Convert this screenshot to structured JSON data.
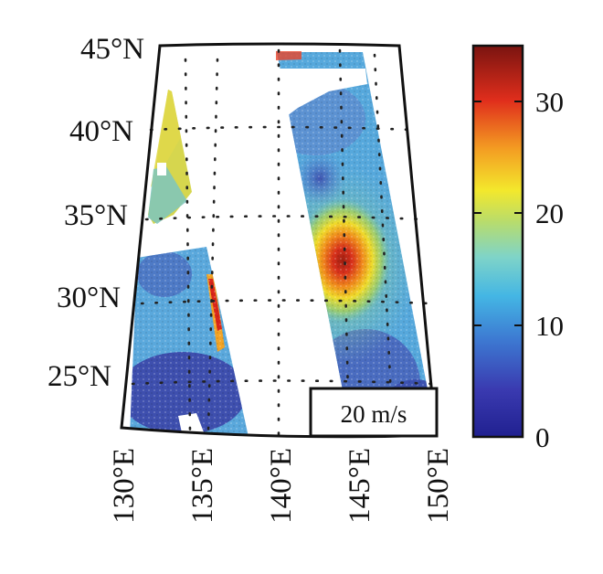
{
  "map": {
    "lat_labels": [
      "45°N",
      "40°N",
      "35°N",
      "30°N",
      "25°N"
    ],
    "lat_values": [
      45,
      40,
      35,
      30,
      25
    ],
    "lon_labels": [
      "130°E",
      "135°E",
      "140°E",
      "145°E",
      "150°E"
    ],
    "lon_values": [
      130,
      135,
      140,
      145,
      150
    ],
    "lat_range": [
      21.5,
      45.5
    ],
    "lon_range": [
      130,
      150
    ],
    "grid": "dotted",
    "projection": "conic"
  },
  "scale_box": {
    "label": "20 m/s"
  },
  "colorbar": {
    "ticks": [
      "0",
      "10",
      "20",
      "30"
    ],
    "tick_values": [
      0,
      10,
      20,
      30
    ],
    "range": [
      0,
      35
    ],
    "colormap": "jet",
    "position": "right"
  },
  "features": {
    "storm_peak_wind_ms": 33,
    "storm_center": {
      "lon": 144,
      "lat": 32.5
    }
  }
}
